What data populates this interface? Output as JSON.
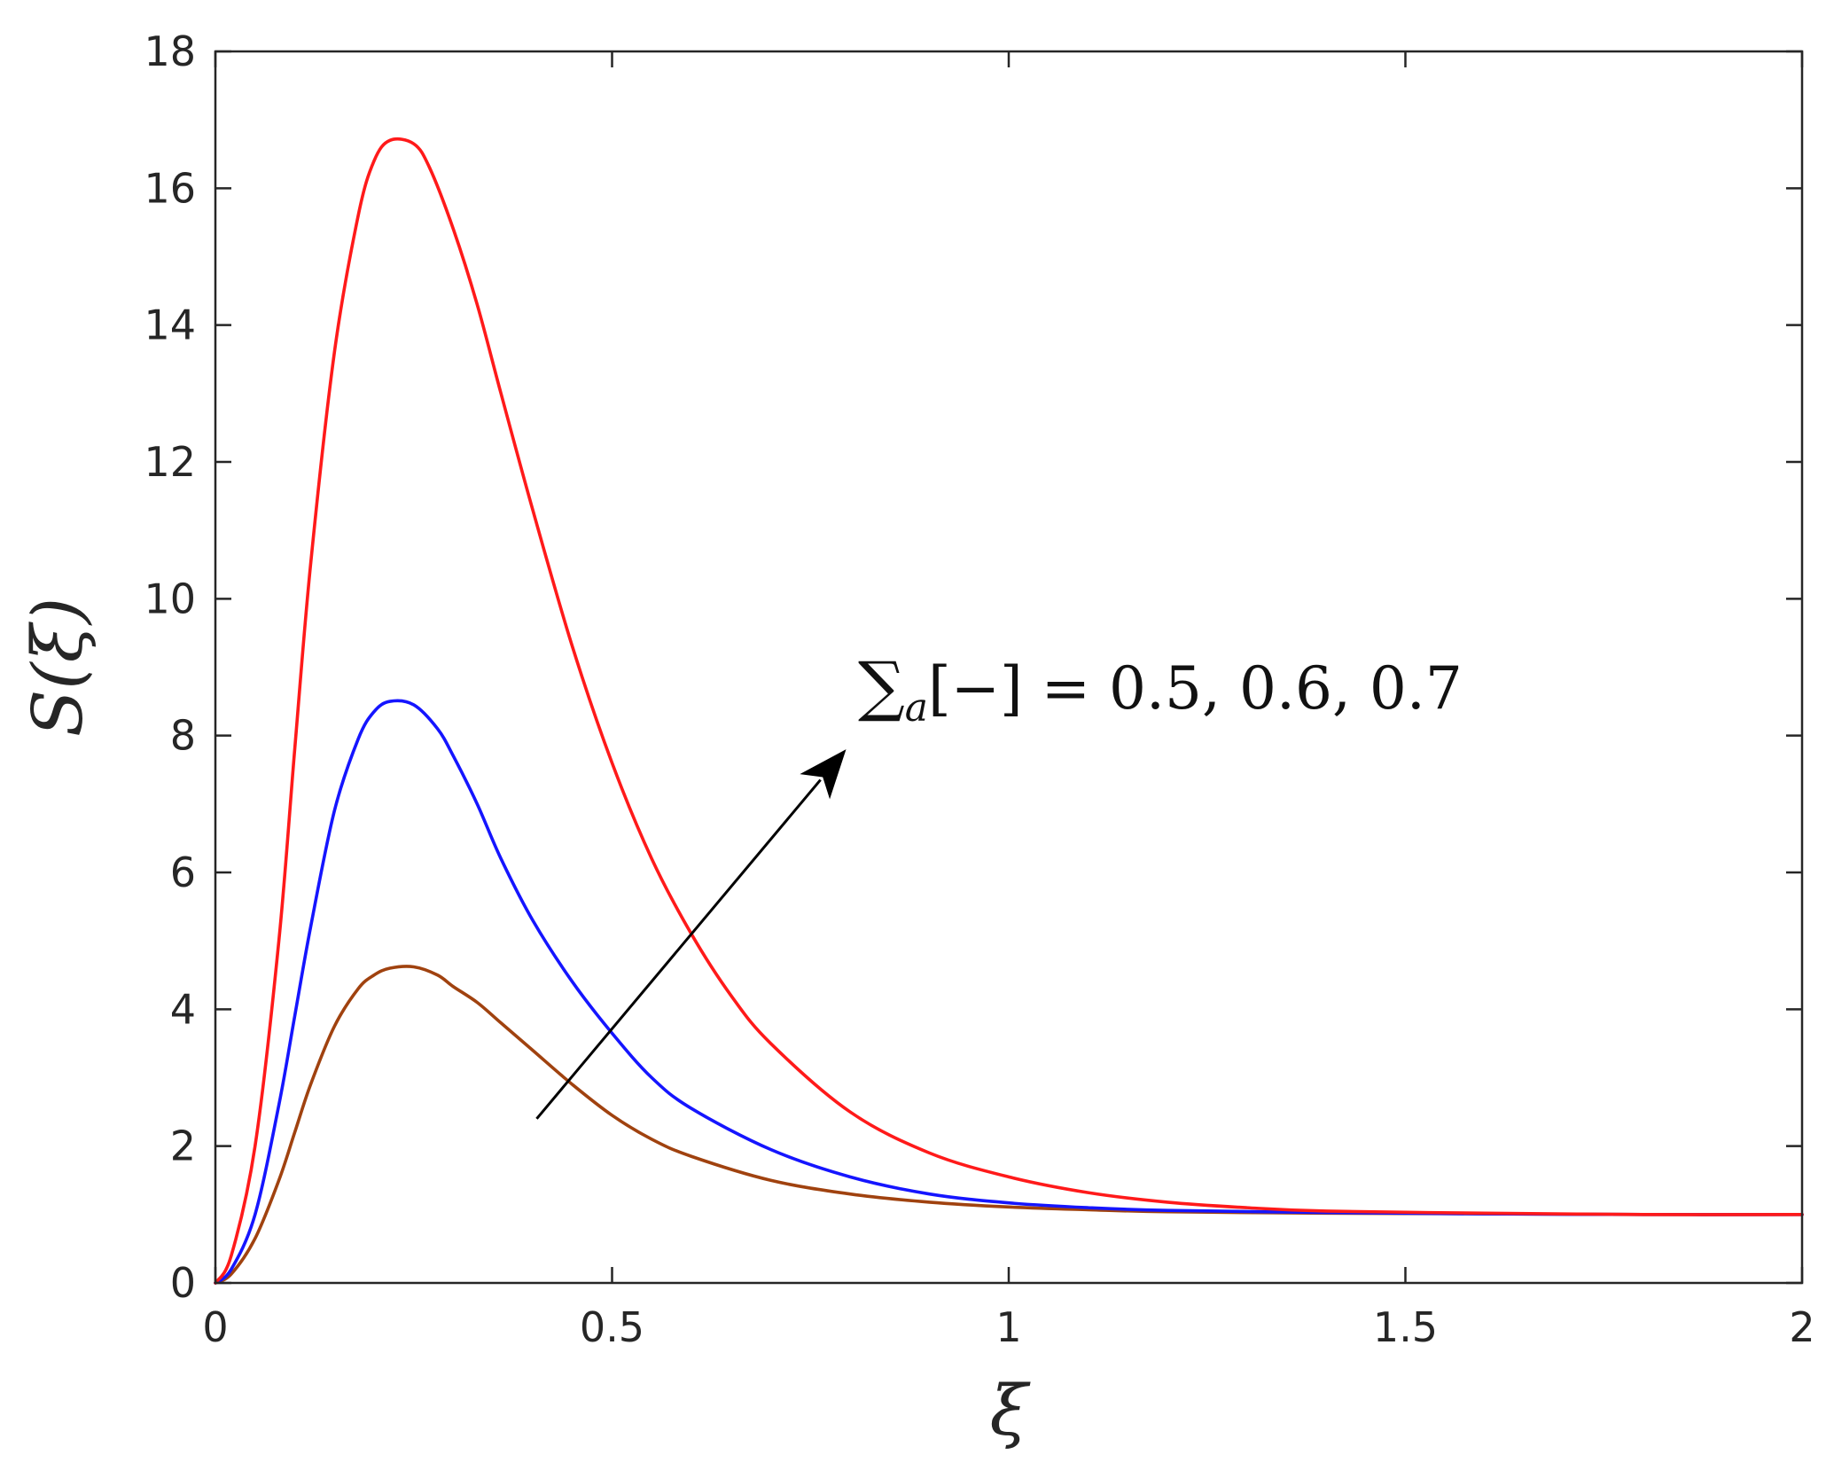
{
  "chart_data": {
    "type": "line",
    "title": "",
    "xlabel": "ξ",
    "ylabel": "S(ξ)",
    "xlim": [
      0,
      2
    ],
    "ylim": [
      0,
      18
    ],
    "xticks": [
      0,
      0.5,
      1,
      1.5,
      2
    ],
    "xtick_labels": [
      "0",
      "0.5",
      "1",
      "1.5",
      "2"
    ],
    "yticks": [
      0,
      2,
      4,
      6,
      8,
      10,
      12,
      14,
      16,
      18
    ],
    "ytick_labels": [
      "0",
      "2",
      "4",
      "6",
      "8",
      "10",
      "12",
      "14",
      "16",
      "18"
    ],
    "grid": false,
    "legend": "none",
    "series": [
      {
        "color": "#a0420f",
        "x": [
          0,
          0.02,
          0.05,
          0.08,
          0.1,
          0.12,
          0.15,
          0.18,
          0.2,
          0.22,
          0.25,
          0.28,
          0.3,
          0.33,
          0.36,
          0.4,
          0.45,
          0.5,
          0.55,
          0.6,
          0.7,
          0.8,
          0.9,
          1.0,
          1.1,
          1.2,
          1.4,
          1.6,
          1.8,
          2.0
        ],
        "y": [
          0,
          0.13,
          0.65,
          1.5,
          2.2,
          2.9,
          3.75,
          4.3,
          4.5,
          4.6,
          4.62,
          4.5,
          4.33,
          4.1,
          3.8,
          3.4,
          2.9,
          2.45,
          2.1,
          1.85,
          1.5,
          1.3,
          1.18,
          1.11,
          1.07,
          1.04,
          1.02,
          1.01,
          1.0,
          1.0
        ]
      },
      {
        "color": "#1515ff",
        "x": [
          0,
          0.02,
          0.05,
          0.08,
          0.1,
          0.12,
          0.15,
          0.18,
          0.2,
          0.22,
          0.25,
          0.28,
          0.3,
          0.33,
          0.36,
          0.4,
          0.45,
          0.5,
          0.55,
          0.6,
          0.7,
          0.8,
          0.9,
          1.0,
          1.1,
          1.2,
          1.4,
          1.6,
          1.8,
          2.0
        ],
        "y": [
          0,
          0.2,
          1.0,
          2.6,
          3.9,
          5.2,
          6.9,
          7.95,
          8.35,
          8.5,
          8.45,
          8.1,
          7.7,
          7.0,
          6.2,
          5.3,
          4.4,
          3.65,
          3.0,
          2.55,
          1.95,
          1.55,
          1.3,
          1.17,
          1.1,
          1.06,
          1.03,
          1.01,
          1.0,
          1.0
        ]
      },
      {
        "color": "#ff1a1a",
        "x": [
          0,
          0.02,
          0.05,
          0.08,
          0.1,
          0.12,
          0.15,
          0.18,
          0.2,
          0.22,
          0.25,
          0.27,
          0.3,
          0.33,
          0.36,
          0.4,
          0.45,
          0.5,
          0.55,
          0.6,
          0.65,
          0.7,
          0.8,
          0.9,
          1.0,
          1.1,
          1.2,
          1.3,
          1.4,
          1.6,
          1.8,
          2.0
        ],
        "y": [
          0,
          0.4,
          2.0,
          5.0,
          7.8,
          10.5,
          13.6,
          15.6,
          16.4,
          16.7,
          16.65,
          16.3,
          15.4,
          14.3,
          13.0,
          11.3,
          9.3,
          7.6,
          6.2,
          5.1,
          4.2,
          3.5,
          2.5,
          1.9,
          1.55,
          1.32,
          1.18,
          1.1,
          1.05,
          1.02,
          1.0,
          1.0
        ]
      }
    ],
    "annotations": [
      {
        "type": "arrow",
        "from": [
          0.405,
          2.4
        ],
        "to": [
          0.795,
          7.8
        ]
      },
      {
        "type": "text",
        "text": "∑a[−] = 0.5, 0.6, 0.7",
        "main": "∑",
        "sub": "a",
        "rest": "[−] = 0.5, 0.6, 0.7",
        "at": [
          0.81,
          8.4
        ]
      }
    ]
  }
}
